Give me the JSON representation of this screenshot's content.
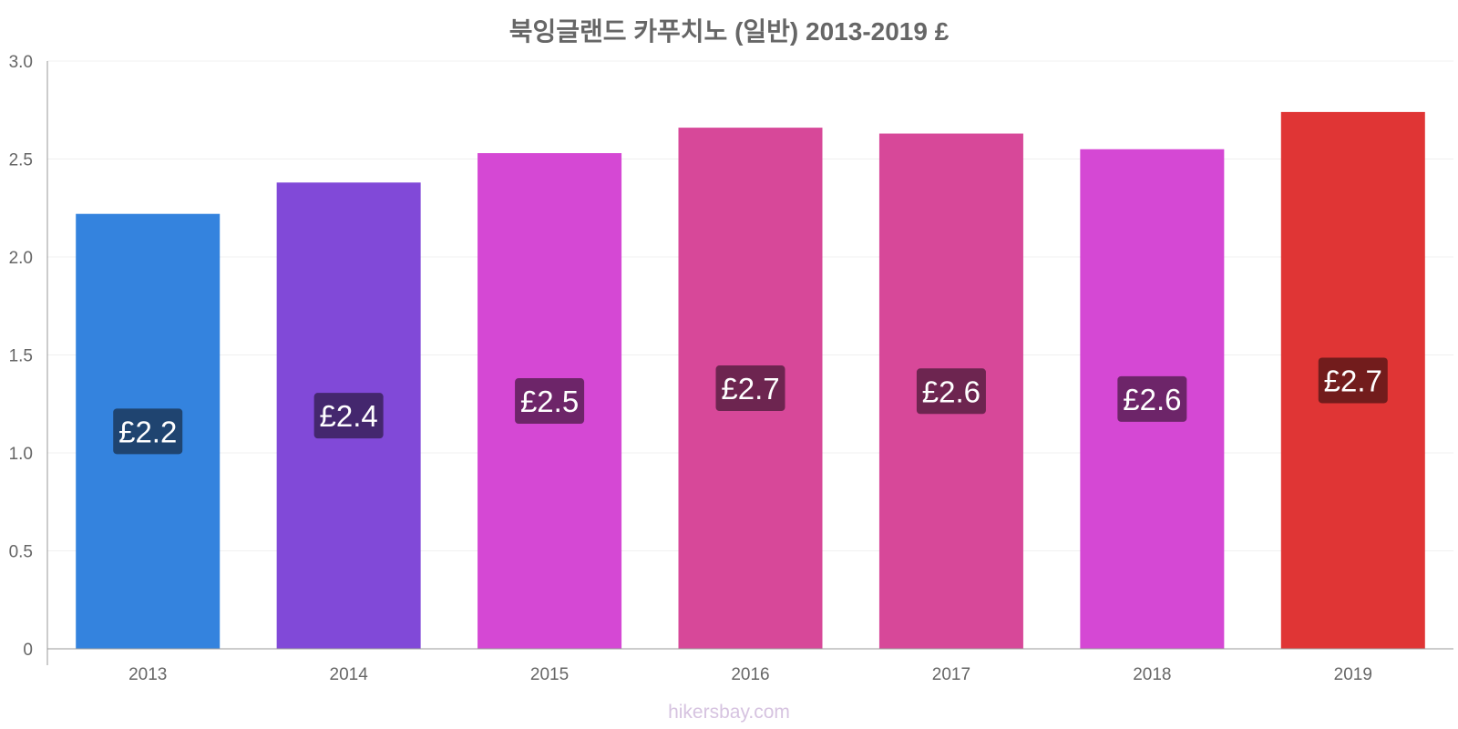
{
  "chart_data": {
    "type": "bar",
    "title": "북잉글랜드 카푸치노 (일반) 2013-2019 £",
    "categories": [
      "2013",
      "2014",
      "2015",
      "2016",
      "2017",
      "2018",
      "2019"
    ],
    "values": [
      2.22,
      2.38,
      2.53,
      2.66,
      2.63,
      2.55,
      2.74
    ],
    "data_labels": [
      "£2.2",
      "£2.4",
      "£2.5",
      "£2.7",
      "£2.6",
      "£2.6",
      "£2.7"
    ],
    "bar_colors": [
      "#3483de",
      "#8149d8",
      "#d548d4",
      "#d74899",
      "#d74899",
      "#d548d4",
      "#e03535"
    ],
    "label_bg_colors": [
      "#1f4470",
      "#44276e",
      "#6d2569",
      "#6d2550",
      "#6d2550",
      "#6d2569",
      "#721c1c"
    ],
    "xlabel": "",
    "ylabel": "",
    "ylim": [
      0,
      3.0
    ],
    "yticks": [
      0,
      0.5,
      1.0,
      1.5,
      2.0,
      2.5,
      3.0
    ],
    "ytick_labels": [
      "0",
      "0.5",
      "1.0",
      "1.5",
      "2.0",
      "2.5",
      "3.0"
    ],
    "grid": true,
    "legend": "none"
  },
  "watermark": "hikersbay.com"
}
